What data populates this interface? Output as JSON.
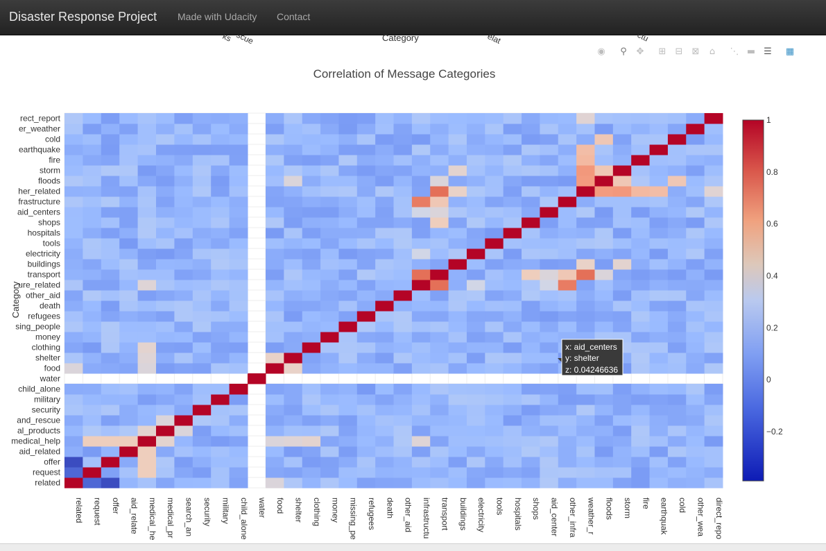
{
  "navbar": {
    "brand": "Disaster Response Project",
    "links": [
      "Made with Udacity",
      "Contact"
    ]
  },
  "modebar": {
    "icons": [
      "camera-icon",
      "zoom-icon",
      "pan-icon",
      "zoom-in-icon",
      "zoom-out-icon",
      "autoscale-icon",
      "home-icon",
      "spike-lines-icon",
      "hover-closest-icon",
      "hover-compare-icon",
      "plotly-logo-icon"
    ]
  },
  "top_axis_fragments": {
    "left_a": "ks",
    "left_b": "scue",
    "center": "Category",
    "right_a": "elat",
    "right_b": "ctu"
  },
  "tooltip": {
    "x_line": "x: aid_centers",
    "y_line": "y: shelter",
    "z_line": "z: 0.04246636"
  },
  "colorbar": {
    "ticks": [
      "1",
      "0.8",
      "0.6",
      "0.4",
      "0.2",
      "0",
      "−0.2"
    ],
    "tick_values": [
      1,
      0.8,
      0.6,
      0.4,
      0.2,
      0,
      -0.2
    ],
    "zmin": -0.39,
    "zmax": 1.0,
    "colors": [
      "#3b4cc0",
      "#6788ee",
      "#9abbff",
      "#c9d7f0",
      "#edd1c2",
      "#f7a789",
      "#e26952",
      "#b40426"
    ]
  },
  "chart_data": {
    "type": "heatmap",
    "title": "Correlation of Message Categories",
    "ylabel": "Category",
    "x_tick_labels": [
      "related",
      "request",
      "offer",
      "aid_relate",
      "medical_he",
      "medical_pr",
      "search_an",
      "security",
      "military",
      "child_alone",
      "water",
      "food",
      "shelter",
      "clothing",
      "money",
      "missing_pe",
      "refugees",
      "death",
      "other_aid",
      "infrastructu",
      "transport",
      "buildings",
      "electricity",
      "tools",
      "hospitals",
      "shops",
      "aid_center",
      "other_infra",
      "weather_r",
      "floods",
      "storm",
      "fire",
      "earthquak",
      "cold",
      "other_wea",
      "direct_repo"
    ],
    "y_tick_labels": [
      "related",
      "request",
      "offer",
      "aid_related",
      "medical_help",
      "al_products",
      "and_rescue",
      "security",
      "military",
      "child_alone",
      "water",
      "food",
      "shelter",
      "clothing",
      "money",
      "sing_people",
      "refugees",
      "death",
      "other_aid",
      "ure_related",
      "transport",
      "buildings",
      "electricity",
      "tools",
      "hospitals",
      "shops",
      "aid_centers",
      "frastructure",
      "her_related",
      "floods",
      "storm",
      "fire",
      "earthquake",
      "cold",
      "er_weather",
      "rect_report"
    ],
    "categories": [
      "related",
      "request",
      "offer",
      "aid_related",
      "medical_help",
      "medical_products",
      "search_and_rescue",
      "security",
      "military",
      "child_alone",
      "water",
      "food",
      "shelter",
      "clothing",
      "money",
      "missing_people",
      "refugees",
      "death",
      "other_aid",
      "infrastructure_related",
      "transport",
      "buildings",
      "electricity",
      "tools",
      "hospitals",
      "shops",
      "aid_centers",
      "other_infrastructure",
      "weather_related",
      "floods",
      "storm",
      "fire",
      "earthquake",
      "cold",
      "other_weather",
      "direct_report"
    ],
    "zmin": -0.39,
    "zmax": 1.0,
    "colorscale": "coolwarm",
    "hovered_point": {
      "x": "aid_centers",
      "y": "shelter",
      "z": 0.04246636
    }
  }
}
